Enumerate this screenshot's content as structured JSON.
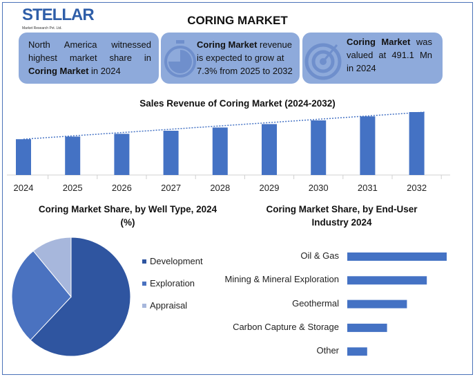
{
  "logo": {
    "name": "STELLAR",
    "tagline": "Market Research Pvt. Ltd."
  },
  "title": "CORING MARKET",
  "cards": [
    {
      "icon": "map-icon",
      "pre": "North America witnessed highest market share in ",
      "bold": "Coring Market",
      "post": " in 2024"
    },
    {
      "icon": "stopwatch-icon",
      "bold": "Coring Market",
      "post": " revenue is expected to grow at 7.3% from 2025 to 2032"
    },
    {
      "icon": "target-icon",
      "bold": "Coring Market",
      "post": " was valued at 491.1 Mn in 2024"
    }
  ],
  "colors": {
    "bar": "#4472c4",
    "card": "#8eaadb",
    "pie": [
      "#2f55a0",
      "#4a72c0",
      "#a7b7dc"
    ]
  },
  "chart_data": [
    {
      "type": "bar",
      "title": "Sales Revenue of Coring Market (2024-2032)",
      "categories": [
        "2024",
        "2025",
        "2026",
        "2027",
        "2028",
        "2029",
        "2030",
        "2031",
        "2032"
      ],
      "values": [
        491.1,
        527,
        565,
        607,
        651,
        698,
        749,
        804,
        863
      ],
      "trendline": "dotted linear",
      "ylim": [
        0,
        900
      ],
      "grid": false
    },
    {
      "type": "pie",
      "title": "Coring Market Share, by Well Type, 2024 (%)",
      "categories": [
        "Development",
        "Exploration",
        "Appraisal"
      ],
      "values": [
        62,
        27,
        11
      ],
      "legend": "right"
    },
    {
      "type": "bar",
      "orientation": "horizontal",
      "title": "Coring Market Share, by End-User Industry 2024",
      "categories": [
        "Oil & Gas",
        "Mining & Mineral Exploration",
        "Geothermal",
        "Carbon Capture & Storage",
        "Other"
      ],
      "values": [
        5,
        4,
        3,
        2,
        1
      ]
    }
  ]
}
